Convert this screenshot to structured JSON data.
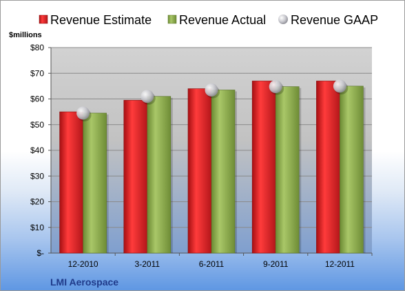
{
  "chart_data": {
    "type": "bar",
    "title": "",
    "company": "LMI Aerospace",
    "ylabel": "$millions",
    "ylim": [
      0,
      80
    ],
    "yticks": [
      0,
      10,
      20,
      30,
      40,
      50,
      60,
      70,
      80
    ],
    "ytick_labels": [
      "$-",
      "$10",
      "$20",
      "$30",
      "$40",
      "$50",
      "$60",
      "$70",
      "$80"
    ],
    "categories": [
      "12-2010",
      "3-2011",
      "6-2011",
      "9-2011",
      "12-2011"
    ],
    "legend_position": "top",
    "grid": true,
    "series": [
      {
        "name": "Revenue Estimate",
        "kind": "bar",
        "color": "#e02020",
        "values": [
          55.0,
          59.5,
          64.0,
          67.0,
          67.0
        ]
      },
      {
        "name": "Revenue Actual",
        "kind": "bar",
        "color": "#8fb04a",
        "values": [
          54.5,
          61.0,
          63.5,
          64.8,
          65.0
        ]
      },
      {
        "name": "Revenue GAAP",
        "kind": "marker",
        "color": "#c8c8cc",
        "values": [
          54.5,
          61.0,
          63.5,
          64.8,
          65.0
        ]
      }
    ]
  }
}
